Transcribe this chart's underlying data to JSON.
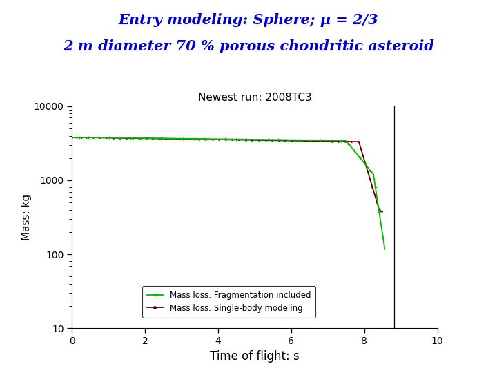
{
  "title_line1": "Entry modeling: Sphere; μ = 2/3",
  "title_line2": "2 m diameter 70 % porous chondritic asteroid",
  "title_color": "#0000CC",
  "subplot_title": "Newest run: 2008TC3",
  "xlabel": "Time of flight: s",
  "ylabel": "Mass: kg",
  "xlim": [
    0,
    10
  ],
  "ylim_log": [
    10,
    10000
  ],
  "xticks": [
    0,
    2,
    4,
    6,
    8,
    10
  ],
  "yticks_log": [
    10,
    100,
    1000,
    10000
  ],
  "legend_label1": "Mass loss: Fragmentation included",
  "legend_label2": "Mass loss: Single-body modeling",
  "color_frag": "#00bb00",
  "color_single": "#660000",
  "bg_color": "#ffffff",
  "vline_x": 8.82,
  "initial_mass": 3800
}
